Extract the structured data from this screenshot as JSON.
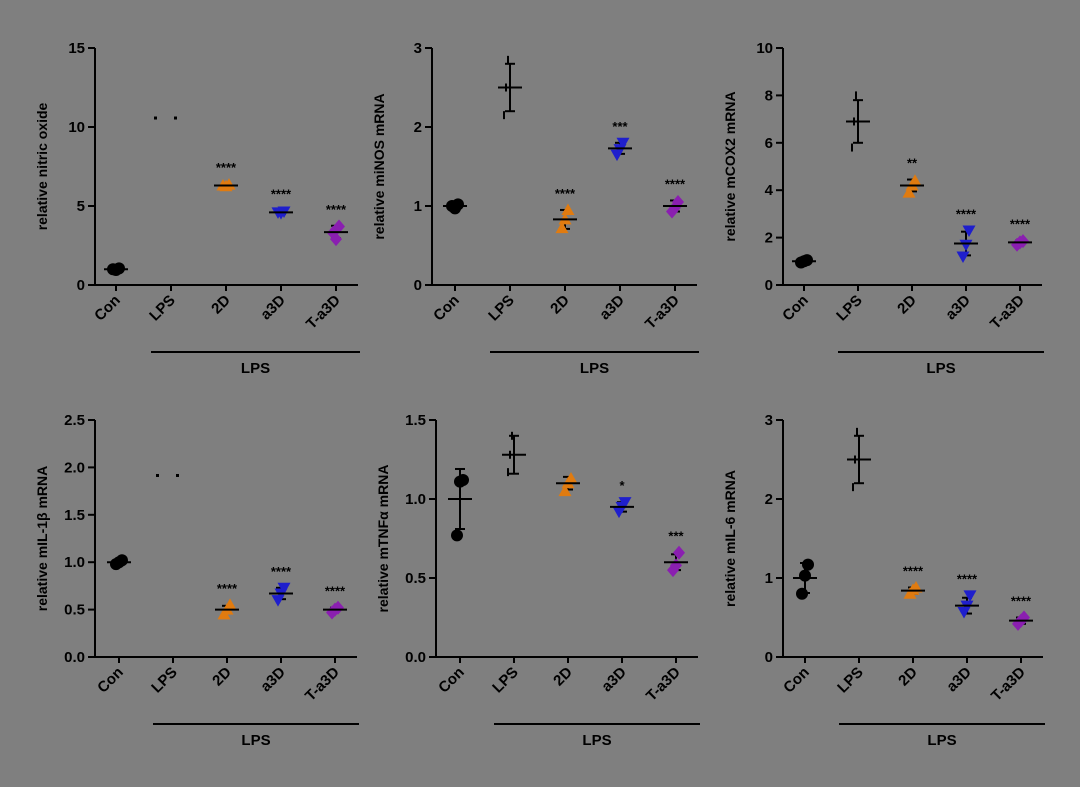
{
  "colors": {
    "background": "#7f7f7f",
    "Con": "#000000",
    "LPS": "#000000",
    "2D": "#e07b10",
    "a3D": "#1f1fcc",
    "T-a3D": "#8a1fb0"
  },
  "chart_data": [
    {
      "type": "scatter",
      "ylabel": "relative nitric oxide",
      "categories": [
        "Con",
        "LPS",
        "2D",
        "a3D",
        "T-a3D"
      ],
      "group_label": "LPS",
      "ylim": [
        0,
        15
      ],
      "yticks": [
        "0",
        "5",
        "10",
        "15"
      ],
      "ytick_values": [
        0,
        5,
        10,
        15
      ],
      "points": [
        [
          1.0,
          0.95,
          1.05
        ],
        [
          10.6,
          10.6,
          10.6
        ],
        [
          6.3,
          6.25,
          6.35
        ],
        [
          4.6,
          4.55,
          4.65
        ],
        [
          3.3,
          2.9,
          3.7
        ]
      ],
      "mean": [
        1.0,
        10.6,
        6.3,
        4.6,
        3.35
      ],
      "sd": [
        0.05,
        0.0,
        0.1,
        0.1,
        0.4
      ],
      "significance": [
        "",
        "",
        "****",
        "****",
        "****"
      ]
    },
    {
      "type": "scatter",
      "ylabel": "relative miNOS mRNA",
      "categories": [
        "Con",
        "LPS",
        "2D",
        "a3D",
        "T-a3D"
      ],
      "group_label": "LPS",
      "ylim": [
        0,
        3
      ],
      "yticks": [
        "0",
        "1",
        "2",
        "3"
      ],
      "ytick_values": [
        0,
        1,
        2,
        3
      ],
      "points": [
        [
          1.0,
          0.97,
          1.02
        ],
        [
          2.15,
          2.5,
          2.85
        ],
        [
          0.72,
          0.83,
          0.95
        ],
        [
          1.65,
          1.72,
          1.8
        ],
        [
          0.93,
          0.98,
          1.05
        ]
      ],
      "mean": [
        1.0,
        2.5,
        0.83,
        1.73,
        1.0
      ],
      "sd": [
        0.03,
        0.3,
        0.12,
        0.07,
        0.07
      ],
      "significance": [
        "",
        "",
        "****",
        "***",
        "****"
      ]
    },
    {
      "type": "scatter",
      "ylabel": "relative  mCOX2 mRNA",
      "categories": [
        "Con",
        "LPS",
        "2D",
        "a3D",
        "T-a3D"
      ],
      "group_label": "LPS",
      "ylim": [
        0,
        10
      ],
      "yticks": [
        "0",
        "2",
        "4",
        "6",
        "8",
        "10"
      ],
      "ytick_values": [
        0,
        2,
        4,
        6,
        8,
        10
      ],
      "points": [
        [
          0.95,
          1.0,
          1.05
        ],
        [
          5.8,
          6.9,
          8.0
        ],
        [
          3.9,
          4.2,
          4.4
        ],
        [
          1.2,
          1.7,
          2.3
        ],
        [
          1.7,
          1.8,
          1.85
        ]
      ],
      "mean": [
        1.0,
        6.9,
        4.2,
        1.75,
        1.8
      ],
      "sd": [
        0.05,
        0.9,
        0.25,
        0.5,
        0.07
      ],
      "significance": [
        "",
        "",
        "**",
        "****",
        "****"
      ]
    },
    {
      "type": "scatter",
      "ylabel": "relative mIL-1β mRNA",
      "categories": [
        "Con",
        "LPS",
        "2D",
        "a3D",
        "T-a3D"
      ],
      "group_label": "LPS",
      "ylim": [
        0,
        2.5
      ],
      "yticks": [
        "0.0",
        "0.5",
        "1.0",
        "1.5",
        "2.0",
        "2.5"
      ],
      "ytick_values": [
        0,
        0.5,
        1.0,
        1.5,
        2.0,
        2.5
      ],
      "points": [
        [
          0.98,
          1.0,
          1.02
        ],
        [
          1.92,
          1.92,
          1.92
        ],
        [
          0.45,
          0.5,
          0.55
        ],
        [
          0.6,
          0.67,
          0.73
        ],
        [
          0.47,
          0.5,
          0.52
        ]
      ],
      "mean": [
        1.0,
        1.92,
        0.5,
        0.67,
        0.5
      ],
      "sd": [
        0.02,
        0.0,
        0.04,
        0.06,
        0.02
      ],
      "significance": [
        "",
        "",
        "****",
        "****",
        "****"
      ]
    },
    {
      "type": "scatter",
      "ylabel": "relative mTNFα mRNA",
      "categories": [
        "Con",
        "LPS",
        "2D",
        "a3D",
        "T-a3D"
      ],
      "group_label": "LPS",
      "ylim": [
        0,
        1.5
      ],
      "yticks": [
        "0.0",
        "0.5",
        "1.0",
        "1.5"
      ],
      "ytick_values": [
        0,
        0.5,
        1.0,
        1.5
      ],
      "points": [
        [
          0.77,
          1.11,
          1.12
        ],
        [
          1.17,
          1.28,
          1.4
        ],
        [
          1.05,
          1.1,
          1.13
        ],
        [
          0.92,
          0.95,
          0.98
        ],
        [
          0.55,
          0.58,
          0.66
        ]
      ],
      "mean": [
        1.0,
        1.28,
        1.1,
        0.95,
        0.6
      ],
      "sd": [
        0.19,
        0.12,
        0.04,
        0.03,
        0.05
      ],
      "significance": [
        "",
        "",
        "",
        "*",
        "***"
      ]
    },
    {
      "type": "scatter",
      "ylabel": "relative mIL-6 mRNA",
      "categories": [
        "Con",
        "LPS",
        "2D",
        "a3D",
        "T-a3D"
      ],
      "group_label": "LPS",
      "ylim": [
        0,
        3
      ],
      "yticks": [
        "0",
        "1",
        "2",
        "3"
      ],
      "ytick_values": [
        0,
        1,
        2,
        3
      ],
      "points": [
        [
          0.8,
          1.03,
          1.17
        ],
        [
          2.15,
          2.5,
          2.85
        ],
        [
          0.8,
          0.85,
          0.88
        ],
        [
          0.57,
          0.65,
          0.78
        ],
        [
          0.42,
          0.46,
          0.5
        ]
      ],
      "mean": [
        1.0,
        2.5,
        0.84,
        0.65,
        0.46
      ],
      "sd": [
        0.19,
        0.3,
        0.04,
        0.1,
        0.04
      ],
      "significance": [
        "",
        "",
        "****",
        "****",
        "****"
      ]
    }
  ]
}
